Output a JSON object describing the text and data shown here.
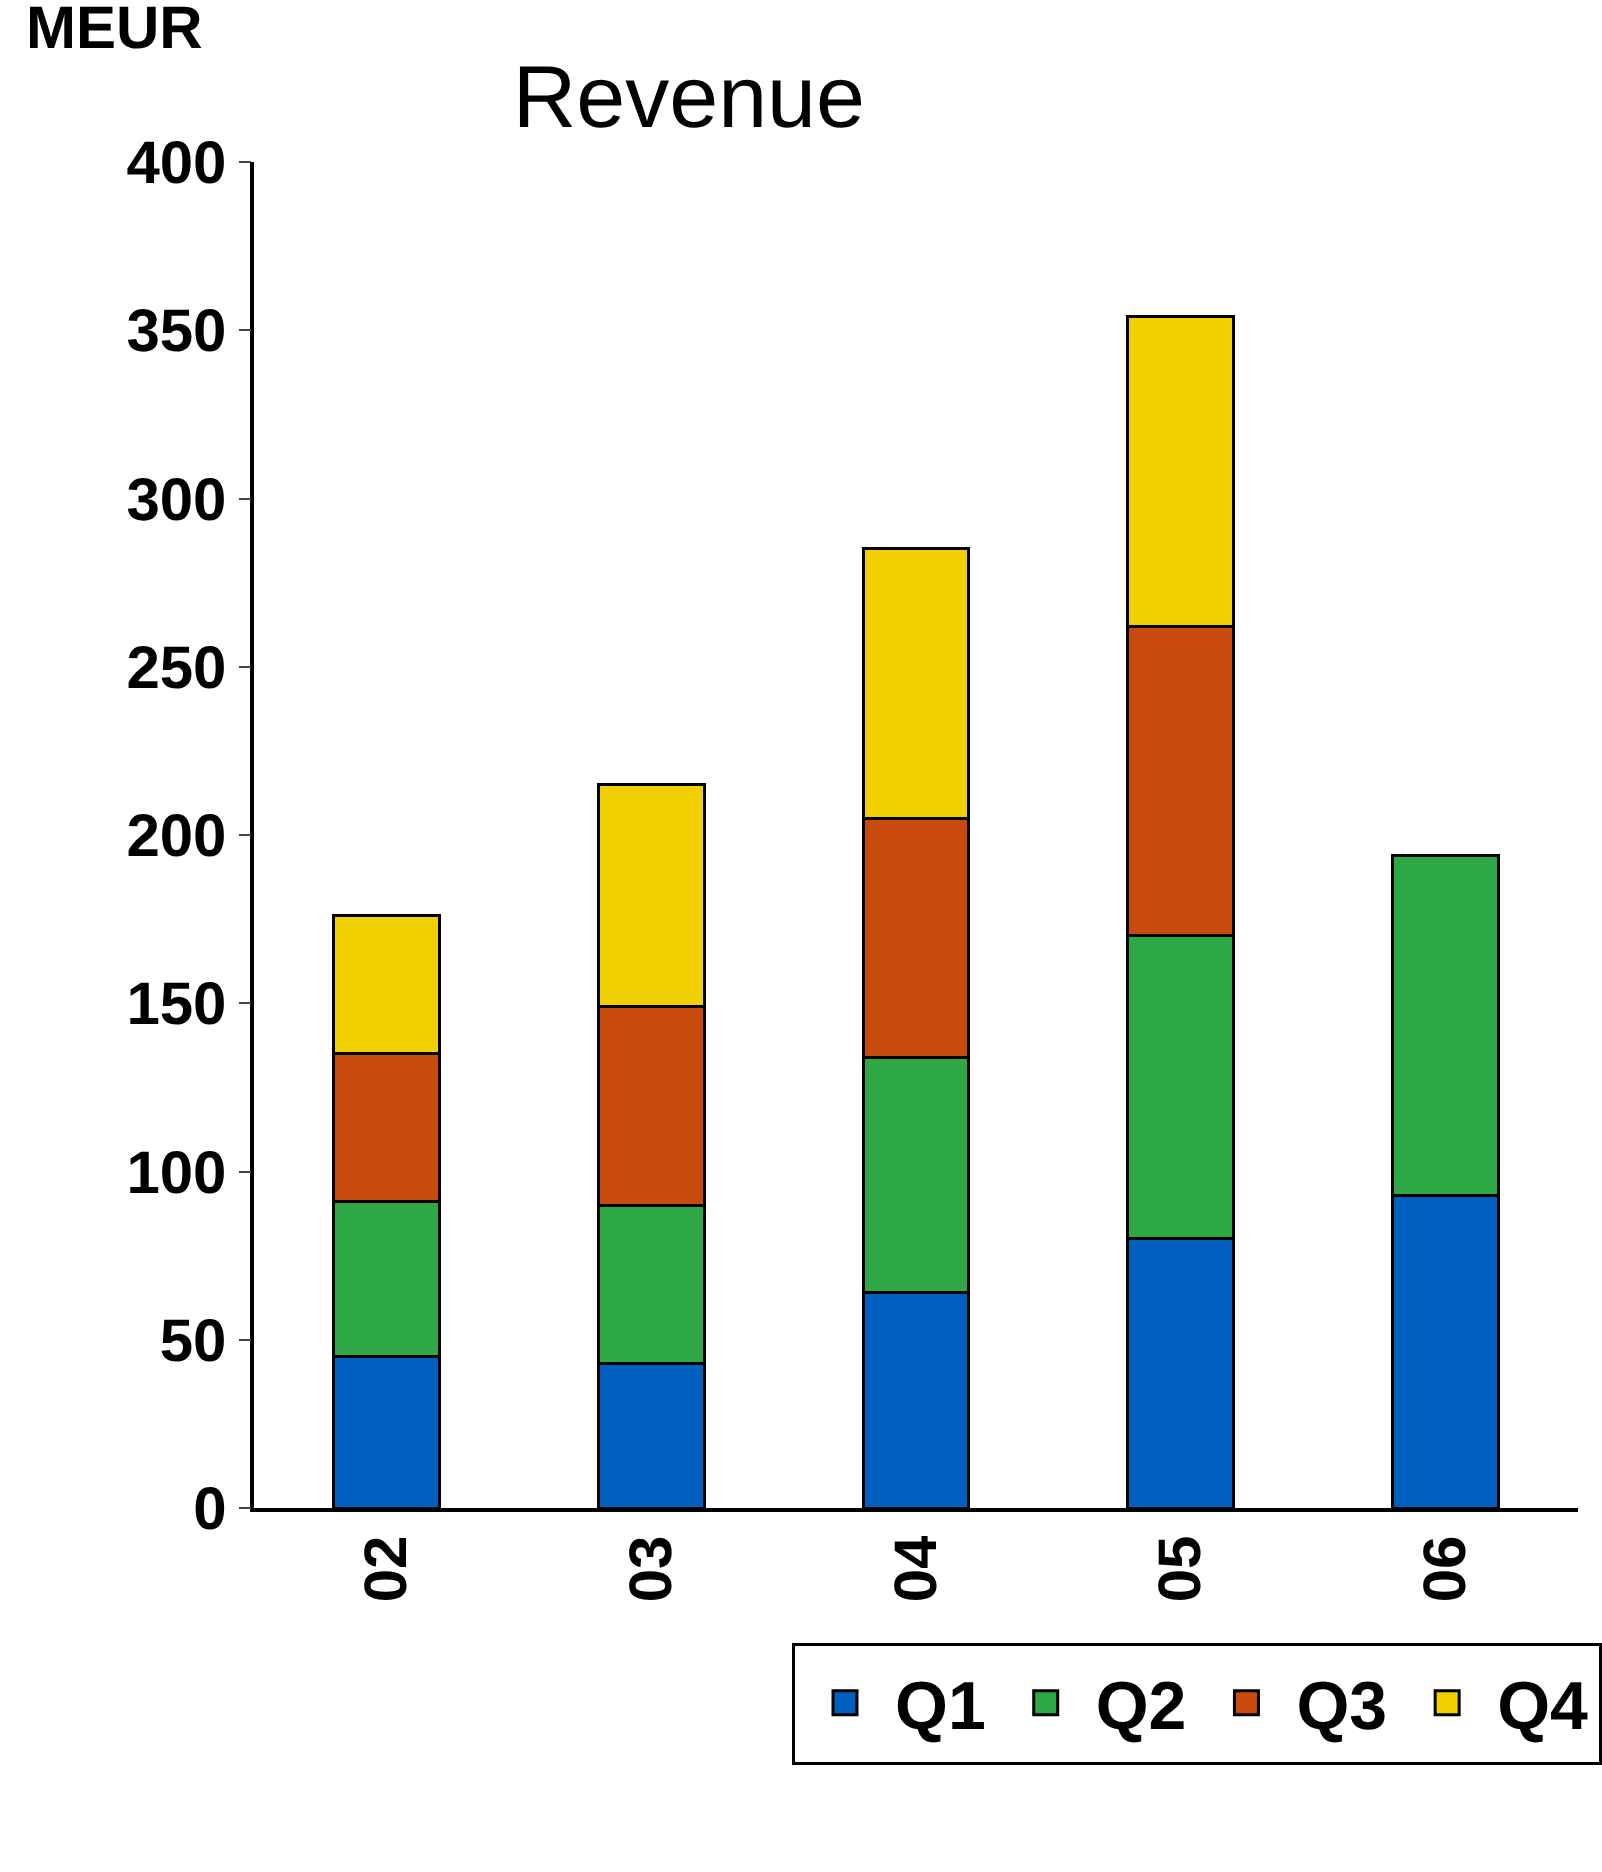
{
  "chart_data": {
    "type": "bar",
    "title": "Revenue",
    "ylabel": "MEUR",
    "stacked": true,
    "categories": [
      "02",
      "03",
      "04",
      "05",
      "06"
    ],
    "series": [
      {
        "name": "Q1",
        "color": "#0060c0",
        "values": [
          45,
          43,
          64,
          80,
          93
        ]
      },
      {
        "name": "Q2",
        "color": "#2ea844",
        "values": [
          46,
          47,
          70,
          90,
          101
        ]
      },
      {
        "name": "Q3",
        "color": "#c84a0c",
        "values": [
          44,
          59,
          71,
          92,
          null
        ]
      },
      {
        "name": "Q4",
        "color": "#f0d000",
        "values": [
          41,
          66,
          80,
          92,
          null
        ]
      }
    ],
    "ylim": [
      0,
      400
    ],
    "yticks": [
      0,
      50,
      100,
      150,
      200,
      250,
      300,
      350,
      400
    ],
    "legend": "bottom"
  }
}
